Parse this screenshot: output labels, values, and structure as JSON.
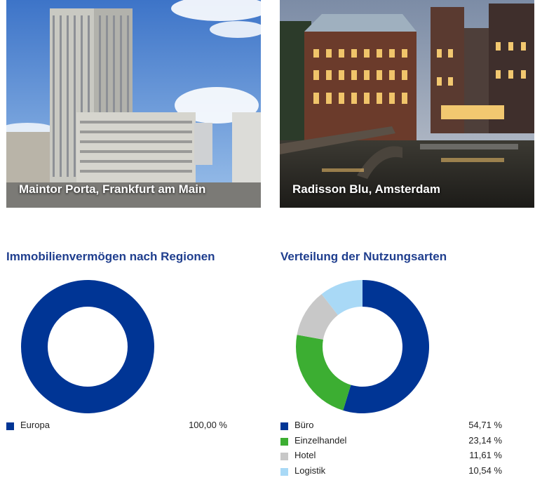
{
  "photos": [
    {
      "caption": "Maintor Porta, Frankfurt am Main"
    },
    {
      "caption": "Radisson Blu, Amsterdam"
    }
  ],
  "chart_data": [
    {
      "type": "pie",
      "donut": true,
      "title": "Immobilienvermögen nach Regionen",
      "categories": [
        "Europa"
      ],
      "values": [
        100.0
      ],
      "value_labels": [
        "100,00 %"
      ],
      "colors": [
        "#003595"
      ],
      "legend": "bottom"
    },
    {
      "type": "pie",
      "donut": true,
      "title": "Verteilung der Nutzungsarten",
      "categories": [
        "Büro",
        "Einzelhandel",
        "Hotel",
        "Logistik"
      ],
      "values": [
        54.71,
        23.14,
        11.61,
        10.54
      ],
      "value_labels": [
        "54,71 %",
        "23,14 %",
        "11,61 %",
        "10,54 %"
      ],
      "colors": [
        "#003595",
        "#3cae32",
        "#c8c8c8",
        "#a9d9f6"
      ],
      "legend": "bottom"
    }
  ]
}
